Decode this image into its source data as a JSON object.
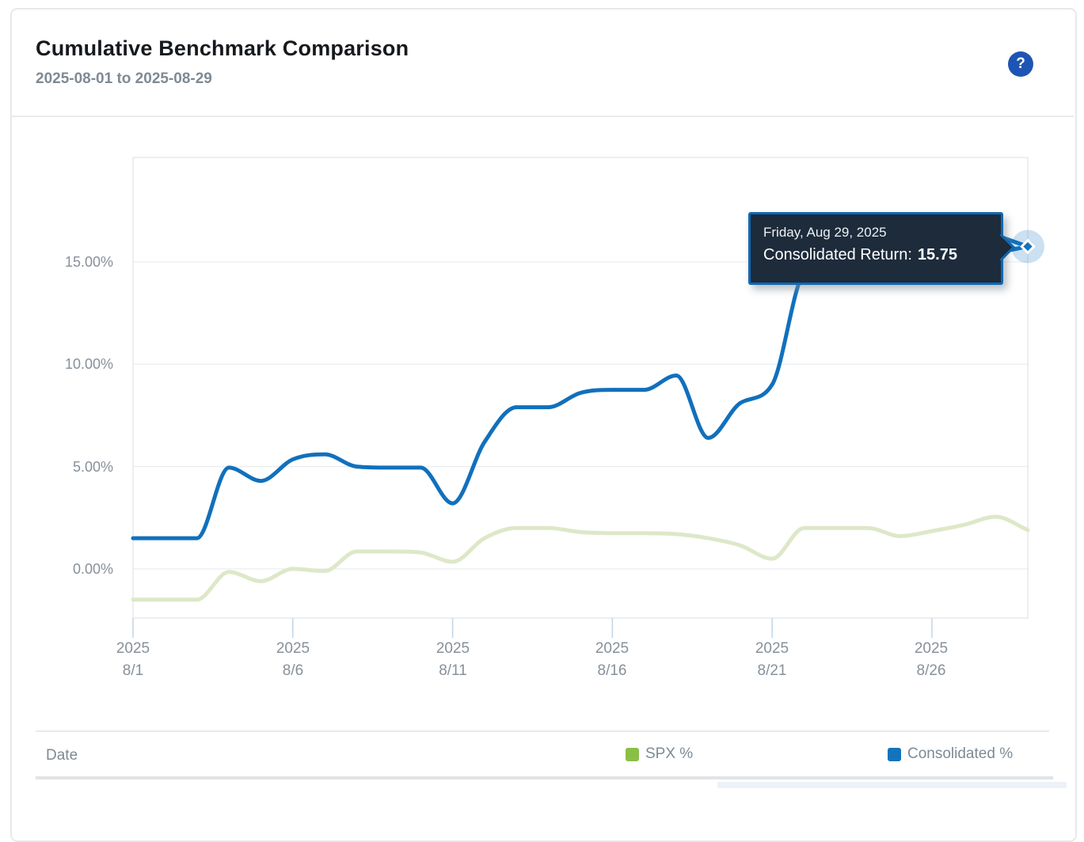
{
  "header": {
    "title": "Cumulative Benchmark Comparison",
    "date_range": "2025-08-01 to 2025-08-29",
    "help_label": "?"
  },
  "tooltip": {
    "date": "Friday, Aug 29, 2025",
    "label": "Consolidated Return:",
    "value": "15.75"
  },
  "table": {
    "columns": [
      {
        "label": "Date"
      },
      {
        "label": "SPX %",
        "swatch": "#8abf45"
      },
      {
        "label": "Consolidated %",
        "swatch": "#1373bd"
      }
    ]
  },
  "chart_data": {
    "type": "line",
    "title": "Cumulative Benchmark Comparison",
    "subtitle": "2025-08-01 to 2025-08-29",
    "x": [
      "8/1",
      "8/2",
      "8/3",
      "8/4",
      "8/5",
      "8/6",
      "8/7",
      "8/8",
      "8/9",
      "8/10",
      "8/11",
      "8/12",
      "8/13",
      "8/14",
      "8/15",
      "8/16",
      "8/17",
      "8/18",
      "8/19",
      "8/20",
      "8/21",
      "8/22",
      "8/23",
      "8/24",
      "8/25",
      "8/26",
      "8/27",
      "8/28",
      "8/29"
    ],
    "x_ticks": [
      {
        "year": "2025",
        "label": "8/1",
        "index": 0
      },
      {
        "year": "2025",
        "label": "8/6",
        "index": 5
      },
      {
        "year": "2025",
        "label": "8/11",
        "index": 10
      },
      {
        "year": "2025",
        "label": "8/16",
        "index": 15
      },
      {
        "year": "2025",
        "label": "8/21",
        "index": 20
      },
      {
        "year": "2025",
        "label": "8/26",
        "index": 25
      }
    ],
    "y_ticks": [
      {
        "label": "15.00%",
        "value": 15
      },
      {
        "label": "10.00%",
        "value": 10
      },
      {
        "label": "5.00%",
        "value": 5
      },
      {
        "label": "0.00%",
        "value": 0
      }
    ],
    "ylim": [
      -2.4,
      20.1
    ],
    "grid": "horizontal",
    "legend_position": "bottom",
    "series": [
      {
        "name": "SPX %",
        "color": "#dde8c8",
        "legend_color": "#8abf45",
        "values": [
          -1.5,
          -1.5,
          -1.5,
          -0.15,
          -0.6,
          0.0,
          -0.1,
          0.85,
          0.85,
          0.8,
          0.35,
          1.5,
          2.0,
          2.0,
          1.8,
          1.75,
          1.75,
          1.7,
          1.5,
          1.15,
          0.5,
          2.0,
          2.0,
          2.0,
          1.6,
          1.85,
          2.15,
          2.55,
          1.9
        ]
      },
      {
        "name": "Consolidated %",
        "color": "#1170bc",
        "legend_color": "#1373bd",
        "values": [
          1.5,
          1.5,
          1.5,
          4.95,
          4.3,
          5.35,
          5.6,
          5.0,
          4.95,
          4.95,
          3.2,
          6.2,
          7.9,
          7.9,
          8.6,
          8.75,
          8.75,
          9.45,
          6.4,
          8.1,
          9.0,
          14.5,
          15.1,
          15.3,
          15.1,
          15.4,
          15.6,
          15.5,
          15.75
        ]
      }
    ],
    "highlighted_point": {
      "series": "Consolidated %",
      "x": "8/29",
      "value": 15.75
    }
  }
}
